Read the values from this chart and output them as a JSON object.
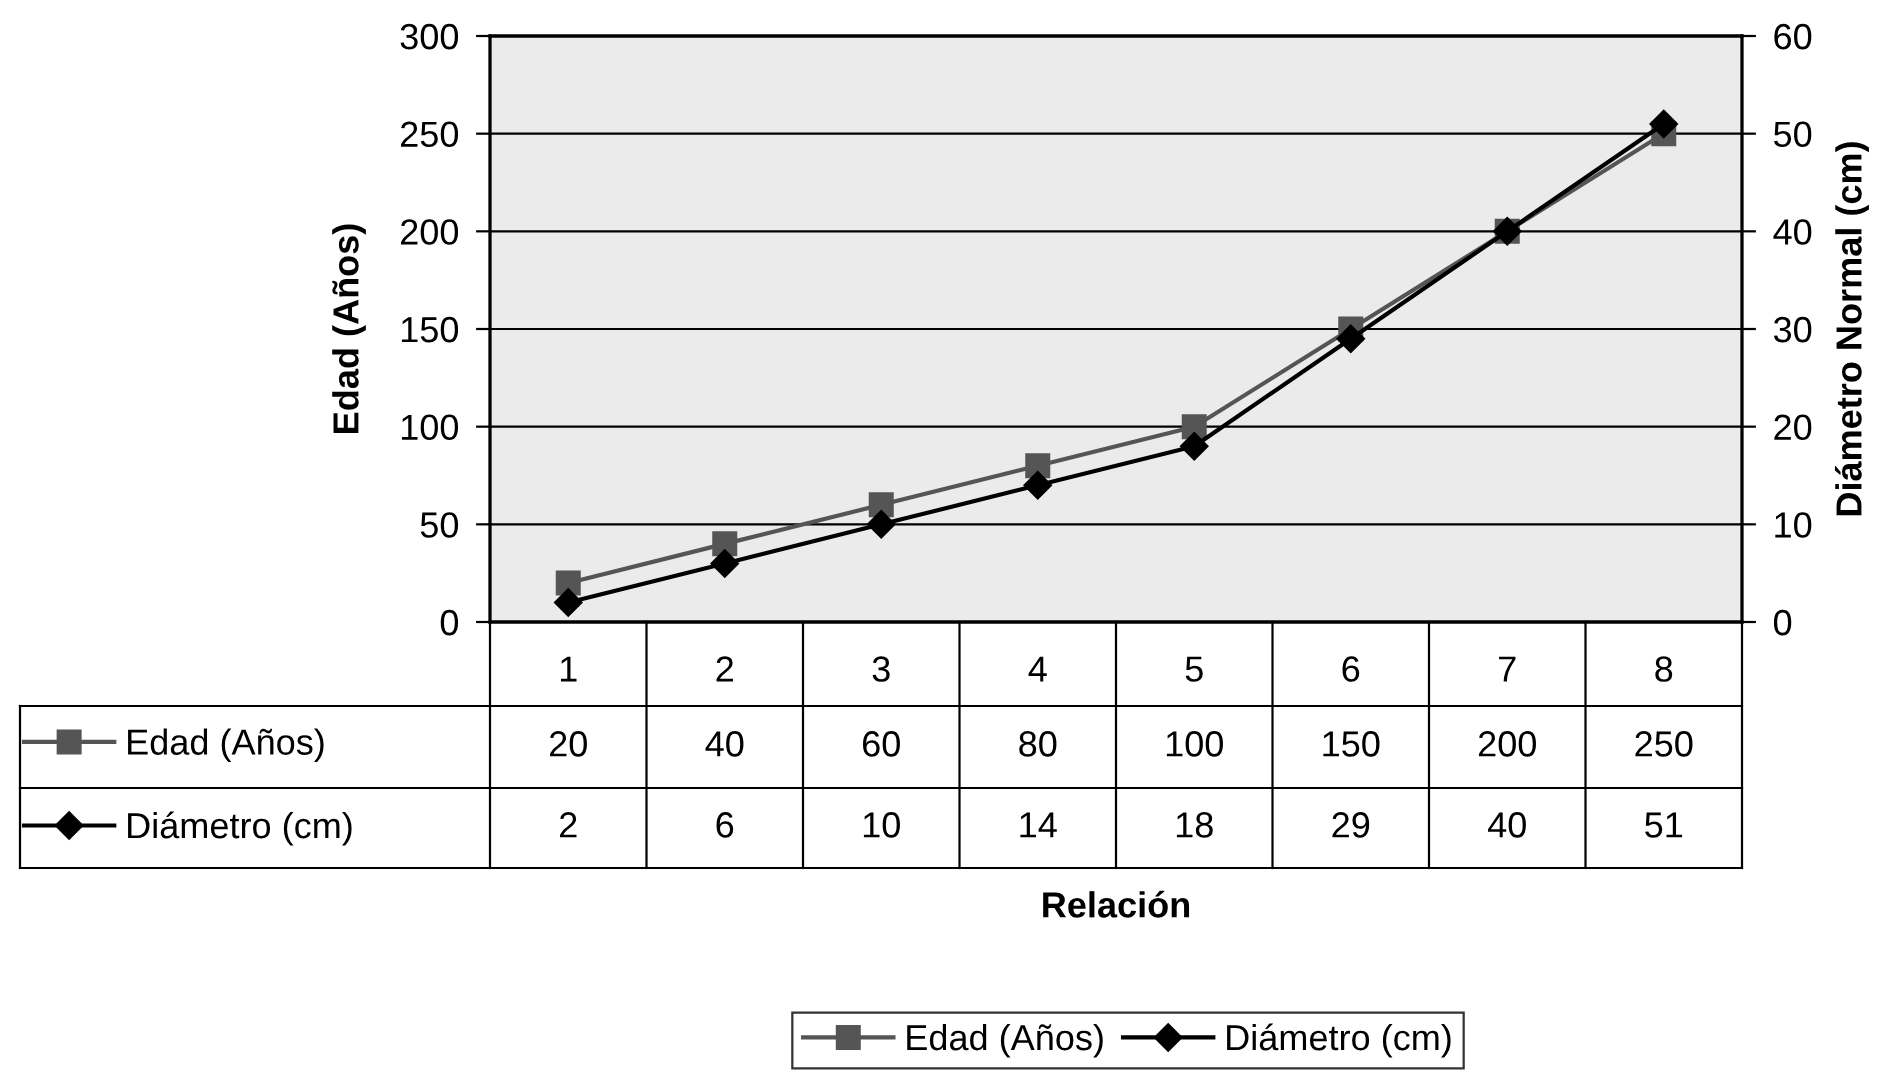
{
  "chart_data": {
    "type": "line",
    "annotations": [
      "Relación"
    ],
    "ylabel": "Edad (Años)",
    "y2label": "Diámetro Normal (cm)",
    "categories": [
      "1",
      "2",
      "3",
      "4",
      "5",
      "6",
      "7",
      "8"
    ],
    "series": [
      {
        "name": "Edad (Años)",
        "color": "#555555",
        "marker": "square",
        "values": [
          20,
          40,
          60,
          80,
          100,
          150,
          200,
          250
        ]
      },
      {
        "name": "Diámetro (cm)",
        "color": "#000000",
        "marker": "diamond",
        "axis": "y2",
        "values": [
          2,
          6,
          10,
          14,
          18,
          29,
          40,
          51
        ]
      }
    ],
    "ylim": [
      0,
      300
    ],
    "yticks": [
      0,
      50,
      100,
      150,
      200,
      250,
      300
    ],
    "y2lim": [
      0,
      60
    ],
    "y2ticks": [
      0,
      10,
      20,
      30,
      40,
      50,
      60
    ],
    "grid": "y",
    "legend": "bottom",
    "data_labels": true
  }
}
